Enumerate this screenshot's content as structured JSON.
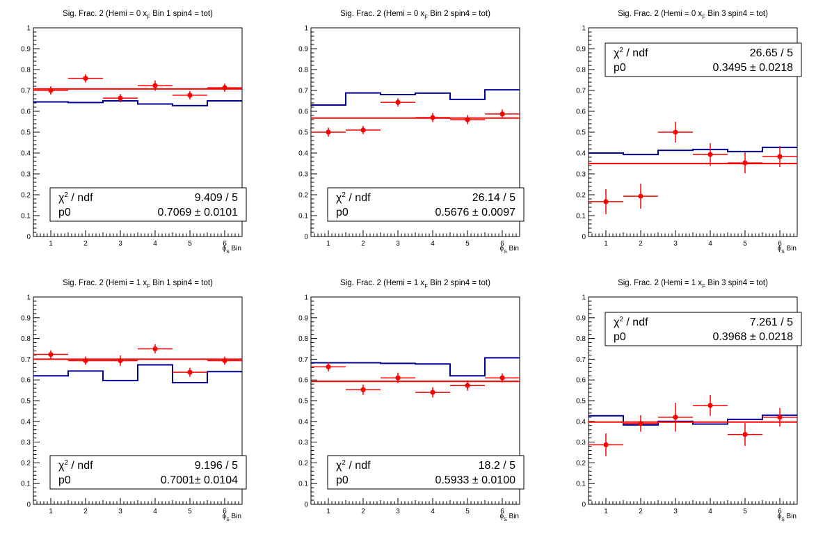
{
  "chart_data": [
    {
      "type": "scatter",
      "title_prefix": "Sig. Frac. 2 (Hemi = 0 x",
      "title_sub": "F",
      "title_suffix": " Bin 1 spin4 = tot)",
      "xlabel_phi": "ϕ",
      "xlabel_sub": "S",
      "xlabel_suffix": " Bin",
      "xlim": [
        0.5,
        6.5
      ],
      "ylim": [
        0,
        1
      ],
      "x_ticks": [
        "1",
        "2",
        "3",
        "4",
        "5",
        "6"
      ],
      "y_ticks": [
        "0",
        "0.1",
        "0.2",
        "0.3",
        "0.4",
        "0.5",
        "0.6",
        "0.7",
        "0.8",
        "0.9",
        "1"
      ],
      "points": [
        {
          "x": 1,
          "y": 0.7,
          "err": 0.02
        },
        {
          "x": 2,
          "y": 0.758,
          "err": 0.02
        },
        {
          "x": 3,
          "y": 0.663,
          "err": 0.02
        },
        {
          "x": 4,
          "y": 0.723,
          "err": 0.025
        },
        {
          "x": 5,
          "y": 0.677,
          "err": 0.02
        },
        {
          "x": 6,
          "y": 0.713,
          "err": 0.02
        }
      ],
      "reference_histogram": [
        0.645,
        0.642,
        0.65,
        0.635,
        0.627,
        0.65
      ],
      "fit_value": 0.7069,
      "stats": {
        "chi2_label": "χ",
        "chi2_sup": "2",
        "chi2_tail": " / ndf",
        "chi2_value": "9.409 / 5",
        "p0_label": "p0",
        "p0_value": "0.7069 ± 0.0101"
      },
      "stats_position": "bottom"
    },
    {
      "type": "scatter",
      "title_prefix": "Sig. Frac. 2 (Hemi = 0 x",
      "title_sub": "F",
      "title_suffix": " Bin 2 spin4 = tot)",
      "xlabel_phi": "ϕ",
      "xlabel_sub": "S",
      "xlabel_suffix": " Bin",
      "xlim": [
        0.5,
        6.5
      ],
      "ylim": [
        0,
        1
      ],
      "x_ticks": [
        "1",
        "2",
        "3",
        "4",
        "5",
        "6"
      ],
      "y_ticks": [
        "0",
        "0.1",
        "0.2",
        "0.3",
        "0.4",
        "0.5",
        "0.6",
        "0.7",
        "0.8",
        "0.9",
        "1"
      ],
      "points": [
        {
          "x": 1,
          "y": 0.5,
          "err": 0.022
        },
        {
          "x": 2,
          "y": 0.51,
          "err": 0.02
        },
        {
          "x": 3,
          "y": 0.643,
          "err": 0.02
        },
        {
          "x": 4,
          "y": 0.57,
          "err": 0.022
        },
        {
          "x": 5,
          "y": 0.56,
          "err": 0.022
        },
        {
          "x": 6,
          "y": 0.587,
          "err": 0.022
        }
      ],
      "reference_histogram": [
        0.63,
        0.688,
        0.68,
        0.687,
        0.657,
        0.703
      ],
      "fit_value": 0.5676,
      "stats": {
        "chi2_label": "χ",
        "chi2_sup": "2",
        "chi2_tail": " / ndf",
        "chi2_value": "26.14 / 5",
        "p0_label": "p0",
        "p0_value": "0.5676 ± 0.0097"
      },
      "stats_position": "bottom"
    },
    {
      "type": "scatter",
      "title_prefix": "Sig. Frac. 2 (Hemi = 0 x",
      "title_sub": "F",
      "title_suffix": " Bin 3 spin4 = tot)",
      "xlabel_phi": "ϕ",
      "xlabel_sub": "S",
      "xlabel_suffix": " Bin",
      "xlim": [
        0.5,
        6.5
      ],
      "ylim": [
        0,
        1
      ],
      "x_ticks": [
        "1",
        "2",
        "3",
        "4",
        "5",
        "6"
      ],
      "y_ticks": [
        "0",
        "0.1",
        "0.2",
        "0.3",
        "0.4",
        "0.5",
        "0.6",
        "0.7",
        "0.8",
        "0.9",
        "1"
      ],
      "points": [
        {
          "x": 1,
          "y": 0.167,
          "err": 0.06
        },
        {
          "x": 2,
          "y": 0.193,
          "err": 0.06
        },
        {
          "x": 3,
          "y": 0.5,
          "err": 0.05
        },
        {
          "x": 4,
          "y": 0.393,
          "err": 0.055
        },
        {
          "x": 5,
          "y": 0.353,
          "err": 0.05
        },
        {
          "x": 6,
          "y": 0.383,
          "err": 0.05
        }
      ],
      "reference_histogram": [
        0.4,
        0.393,
        0.413,
        0.417,
        0.407,
        0.427
      ],
      "fit_value": 0.3495,
      "stats": {
        "chi2_label": "χ",
        "chi2_sup": "2",
        "chi2_tail": " / ndf",
        "chi2_value": "26.65 / 5",
        "p0_label": "p0",
        "p0_value": "0.3495 ± 0.0218"
      },
      "stats_position": "top"
    },
    {
      "type": "scatter",
      "title_prefix": "Sig. Frac. 2 (Hemi = 1 x",
      "title_sub": "F",
      "title_suffix": " Bin 1 spin4 = tot)",
      "xlabel_phi": "ϕ",
      "xlabel_sub": "S",
      "xlabel_suffix": " Bin",
      "xlim": [
        0.5,
        6.5
      ],
      "ylim": [
        0,
        1
      ],
      "x_ticks": [
        "1",
        "2",
        "3",
        "4",
        "5",
        "6"
      ],
      "y_ticks": [
        "0",
        "0.1",
        "0.2",
        "0.3",
        "0.4",
        "0.5",
        "0.6",
        "0.7",
        "0.8",
        "0.9",
        "1"
      ],
      "points": [
        {
          "x": 1,
          "y": 0.723,
          "err": 0.02
        },
        {
          "x": 2,
          "y": 0.693,
          "err": 0.02
        },
        {
          "x": 3,
          "y": 0.693,
          "err": 0.025
        },
        {
          "x": 4,
          "y": 0.75,
          "err": 0.022
        },
        {
          "x": 5,
          "y": 0.637,
          "err": 0.022
        },
        {
          "x": 6,
          "y": 0.693,
          "err": 0.02
        }
      ],
      "reference_histogram": [
        0.62,
        0.643,
        0.597,
        0.673,
        0.587,
        0.64
      ],
      "fit_value": 0.7001,
      "stats": {
        "chi2_label": "χ",
        "chi2_sup": "2",
        "chi2_tail": " / ndf",
        "chi2_value": "9.196 / 5",
        "p0_label": "p0",
        "p0_value": "0.7001± 0.0104"
      },
      "stats_position": "bottom"
    },
    {
      "type": "scatter",
      "title_prefix": "Sig. Frac. 2 (Hemi = 1 x",
      "title_sub": "F",
      "title_suffix": " Bin 2 spin4 = tot)",
      "xlabel_phi": "ϕ",
      "xlabel_sub": "S",
      "xlabel_suffix": " Bin",
      "xlim": [
        0.5,
        6.5
      ],
      "ylim": [
        0,
        1
      ],
      "x_ticks": [
        "1",
        "2",
        "3",
        "4",
        "5",
        "6"
      ],
      "y_ticks": [
        "0",
        "0.1",
        "0.2",
        "0.3",
        "0.4",
        "0.5",
        "0.6",
        "0.7",
        "0.8",
        "0.9",
        "1"
      ],
      "points": [
        {
          "x": 1,
          "y": 0.663,
          "err": 0.022
        },
        {
          "x": 2,
          "y": 0.553,
          "err": 0.025
        },
        {
          "x": 3,
          "y": 0.61,
          "err": 0.025
        },
        {
          "x": 4,
          "y": 0.54,
          "err": 0.025
        },
        {
          "x": 5,
          "y": 0.573,
          "err": 0.025
        },
        {
          "x": 6,
          "y": 0.61,
          "err": 0.022
        }
      ],
      "reference_histogram": [
        0.683,
        0.683,
        0.68,
        0.677,
        0.62,
        0.707
      ],
      "fit_value": 0.5933,
      "stats": {
        "chi2_label": "χ",
        "chi2_sup": "2",
        "chi2_tail": " / ndf",
        "chi2_value": "18.2 / 5",
        "p0_label": "p0",
        "p0_value": "0.5933 ± 0.0100"
      },
      "stats_position": "bottom"
    },
    {
      "type": "scatter",
      "title_prefix": "Sig. Frac. 2 (Hemi = 1 x",
      "title_sub": "F",
      "title_suffix": " Bin 3 spin4 = tot)",
      "xlabel_phi": "ϕ",
      "xlabel_sub": "S",
      "xlabel_suffix": " Bin",
      "xlim": [
        0.5,
        6.5
      ],
      "ylim": [
        0,
        1
      ],
      "x_ticks": [
        "1",
        "2",
        "3",
        "4",
        "5",
        "6"
      ],
      "y_ticks": [
        "0",
        "0.1",
        "0.2",
        "0.3",
        "0.4",
        "0.5",
        "0.6",
        "0.7",
        "0.8",
        "0.9",
        "1"
      ],
      "points": [
        {
          "x": 1,
          "y": 0.287,
          "err": 0.055
        },
        {
          "x": 2,
          "y": 0.39,
          "err": 0.04
        },
        {
          "x": 3,
          "y": 0.42,
          "err": 0.07
        },
        {
          "x": 4,
          "y": 0.477,
          "err": 0.05
        },
        {
          "x": 5,
          "y": 0.337,
          "err": 0.055
        },
        {
          "x": 6,
          "y": 0.42,
          "err": 0.045
        }
      ],
      "reference_histogram": [
        0.427,
        0.383,
        0.4,
        0.387,
        0.41,
        0.43
      ],
      "fit_value": 0.3968,
      "stats": {
        "chi2_label": "χ",
        "chi2_sup": "2",
        "chi2_tail": " / ndf",
        "chi2_value": "7.261 / 5",
        "p0_label": "p0",
        "p0_value": "0.3968 ± 0.0218"
      },
      "stats_position": "top"
    }
  ],
  "colors": {
    "data_points": "#ff0000",
    "fit_line": "#ff0000",
    "reference_histogram": "#000099",
    "frame": "#000000"
  }
}
